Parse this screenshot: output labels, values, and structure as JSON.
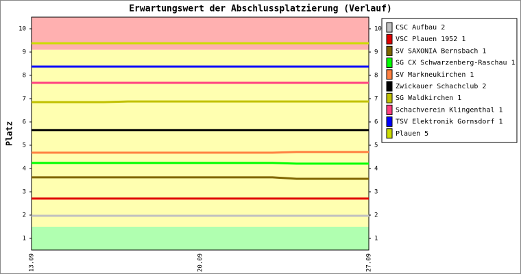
{
  "chart_data": {
    "type": "line",
    "title": "Erwartungswert der Abschlussplatzierung (Verlauf)",
    "y_label": "Platz",
    "categories": [
      "13.09",
      null,
      null,
      null,
      null,
      null,
      null,
      "20.09",
      null,
      null,
      null,
      null,
      null,
      null,
      "27.09"
    ],
    "ylim": [
      10.5,
      0.5
    ],
    "yticks": [
      1,
      2,
      3,
      4,
      5,
      6,
      7,
      8,
      9,
      10
    ],
    "bands": [
      {
        "from": 0.5,
        "to": 1.5,
        "color": "#b0ffb0"
      },
      {
        "from": 1.5,
        "to": 9.1,
        "color": "#ffffb0"
      },
      {
        "from": 9.1,
        "to": 10.5,
        "color": "#ffb0b0"
      }
    ],
    "legend": "right",
    "series": [
      {
        "name": "CSC Aufbau 2",
        "color": "#c0c0c0",
        "values": [
          1.97,
          1.97,
          1.97,
          1.97,
          1.97,
          1.97,
          1.97,
          1.97,
          1.97,
          1.97,
          1.97,
          1.97,
          1.97,
          1.97,
          1.97
        ]
      },
      {
        "name": "VSC Plauen 1952 1",
        "color": "#e00000",
        "values": [
          2.71,
          2.71,
          2.71,
          2.71,
          2.71,
          2.71,
          2.71,
          2.71,
          2.71,
          2.71,
          2.71,
          2.71,
          2.71,
          2.71,
          2.71
        ]
      },
      {
        "name": "SV SAXONIA Bernsbach 1",
        "color": "#806600",
        "values": [
          3.62,
          3.62,
          3.62,
          3.62,
          3.62,
          3.62,
          3.62,
          3.62,
          3.62,
          3.62,
          3.62,
          3.56,
          3.56,
          3.56,
          3.56
        ]
      },
      {
        "name": "SG CX Schwarzenberg-Raschau 1",
        "color": "#00ff00",
        "values": [
          4.24,
          4.24,
          4.24,
          4.24,
          4.24,
          4.24,
          4.24,
          4.24,
          4.24,
          4.24,
          4.24,
          4.21,
          4.21,
          4.21,
          4.21
        ]
      },
      {
        "name": "SV Markneukirchen 1",
        "color": "#ff8040",
        "values": [
          4.68,
          4.68,
          4.68,
          4.68,
          4.68,
          4.68,
          4.68,
          4.68,
          4.68,
          4.68,
          4.68,
          4.71,
          4.71,
          4.71,
          4.71
        ]
      },
      {
        "name": "Zwickauer Schachclub 2",
        "color": "#000000",
        "values": [
          5.65,
          5.65,
          5.65,
          5.65,
          5.65,
          5.65,
          5.65,
          5.65,
          5.65,
          5.65,
          5.65,
          5.65,
          5.65,
          5.65,
          5.65
        ]
      },
      {
        "name": "SG Waldkirchen 1",
        "color": "#c0c000",
        "values": [
          6.85,
          6.85,
          6.85,
          6.85,
          6.88,
          6.88,
          6.88,
          6.88,
          6.88,
          6.88,
          6.88,
          6.88,
          6.88,
          6.88,
          6.88
        ]
      },
      {
        "name": "Schachverein Klingenthal 1",
        "color": "#ff4080",
        "values": [
          7.68,
          7.68,
          7.68,
          7.68,
          7.68,
          7.68,
          7.68,
          7.68,
          7.68,
          7.68,
          7.68,
          7.68,
          7.68,
          7.68,
          7.68
        ]
      },
      {
        "name": "TSV Elektronik Gornsdorf 1",
        "color": "#0000ff",
        "values": [
          8.38,
          8.38,
          8.38,
          8.38,
          8.38,
          8.38,
          8.38,
          8.38,
          8.38,
          8.38,
          8.38,
          8.38,
          8.38,
          8.38,
          8.38
        ]
      },
      {
        "name": "Plauen 5",
        "color": "#ccdd00",
        "values": [
          9.38,
          9.38,
          9.38,
          9.38,
          9.38,
          9.38,
          9.38,
          9.38,
          9.38,
          9.38,
          9.38,
          9.38,
          9.38,
          9.38,
          9.38
        ]
      }
    ]
  }
}
